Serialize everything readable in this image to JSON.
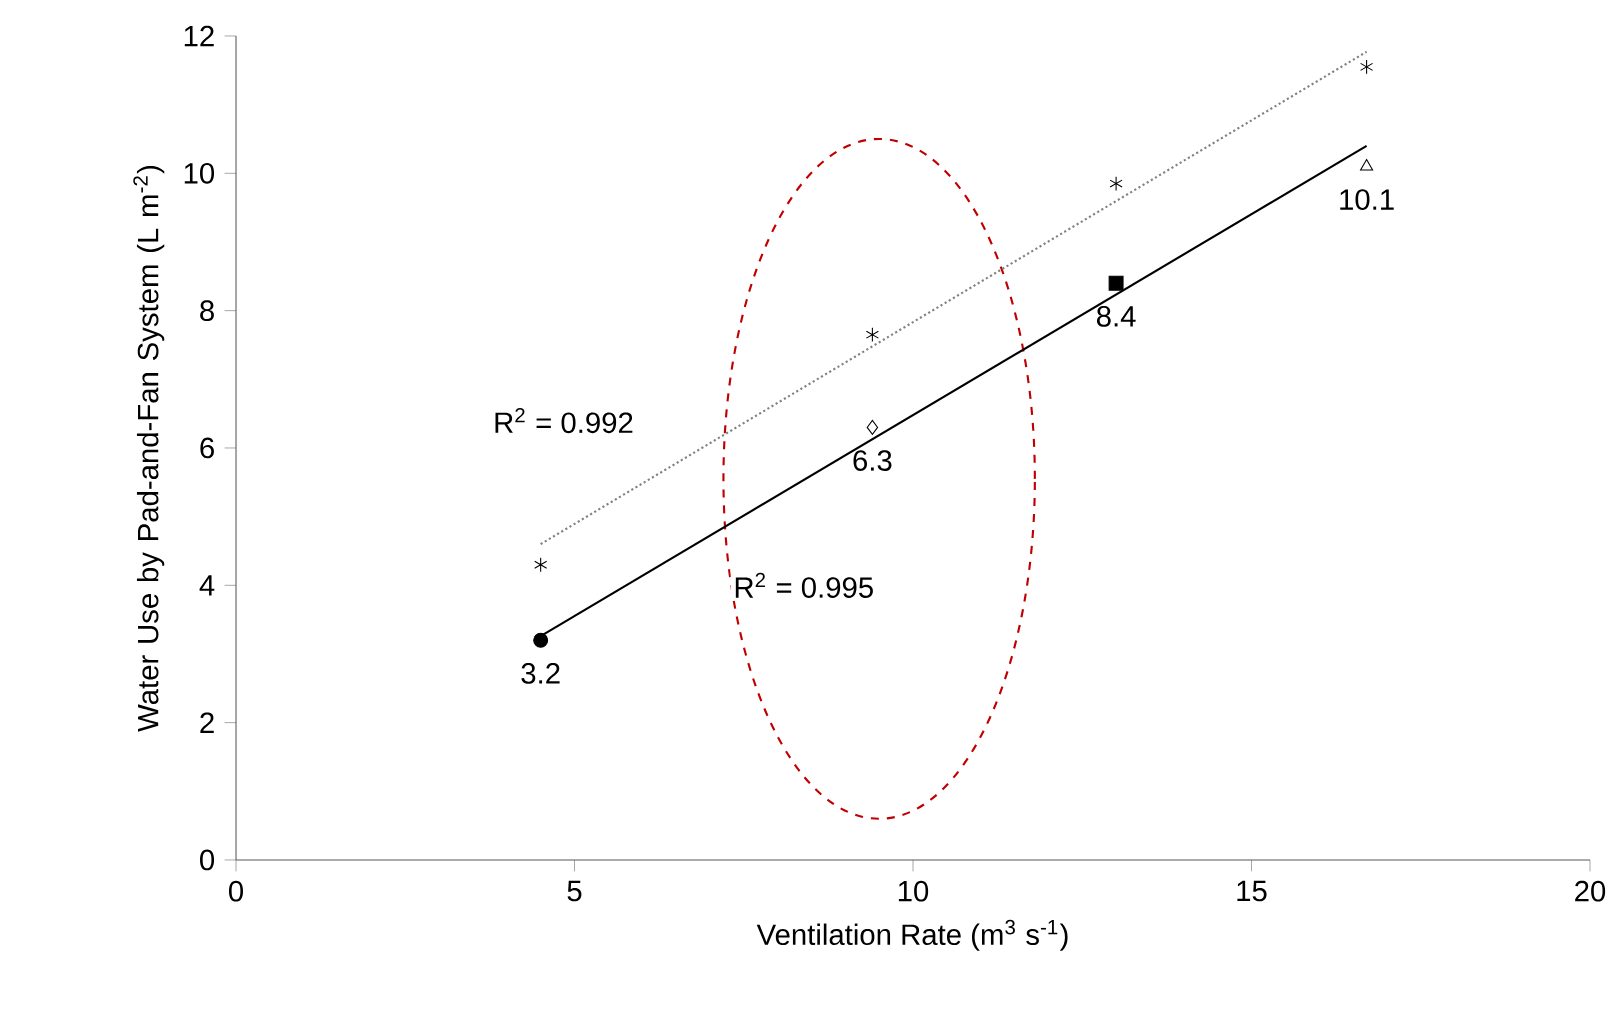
{
  "chart_data": {
    "type": "scatter",
    "xlabel": "Ventilation Rate (m$^{3}$ s$^{-1}$)",
    "ylabel": "Water Use by Pad-and-Fan System (L m$^{-2}$)",
    "xlim": [
      0,
      20
    ],
    "xticks": [
      0,
      5,
      10,
      15,
      20
    ],
    "ylim": [
      0,
      12
    ],
    "yticks": [
      0,
      2,
      4,
      6,
      8,
      10,
      12
    ],
    "grid": false,
    "annotations": [
      "R$^{2}$ = 0.992",
      "R$^{2}$ = 0.995"
    ],
    "series": [
      {
        "color": "#000000",
        "marker": "circle",
        "x": [
          4.5
        ],
        "values": [
          3.2
        ],
        "value_labels": [
          "3.2"
        ]
      },
      {
        "color": "#000000",
        "marker": "diamond",
        "x": [
          9.4
        ],
        "values": [
          6.3
        ],
        "value_labels": [
          "6.3"
        ]
      },
      {
        "color": "#000000",
        "marker": "square",
        "x": [
          13
        ],
        "values": [
          8.4
        ],
        "value_labels": [
          "8.4"
        ]
      },
      {
        "color": "#000000",
        "marker": "triangle",
        "x": [
          16.7
        ],
        "values": [
          10.1
        ],
        "value_labels": [
          "10.1"
        ]
      },
      {
        "color": "#000000",
        "marker": "cross",
        "x": [
          4.5,
          9.4,
          13,
          16.7
        ],
        "values": [
          4.3,
          7.65,
          9.85,
          11.55
        ]
      },
      {
        "type": "line",
        "color": "#000000",
        "marker": "none",
        "line_style": "solid",
        "x": [
          4.5,
          16.7
        ],
        "values": [
          3.26,
          10.4
        ]
      },
      {
        "type": "line",
        "color": "#808080",
        "marker": "none",
        "line_style": "dotted",
        "x": [
          4.5,
          16.7
        ],
        "values": [
          4.6,
          11.77
        ]
      }
    ]
  }
}
